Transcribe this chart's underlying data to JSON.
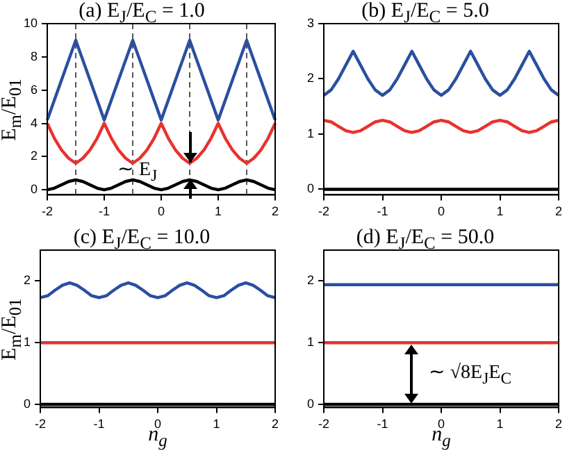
{
  "chart_data": [
    {
      "type": "line",
      "title": "(a) E$_{J}$/E$_{C}$ = 1.0",
      "ylabel": "E$_{m}$/E$_{01}$",
      "legend": false,
      "x": [
        -2,
        -1.875,
        -1.75,
        -1.625,
        -1.5,
        -1.375,
        -1.25,
        -1.125,
        -1,
        -0.875,
        -0.75,
        -0.625,
        -0.5,
        -0.375,
        -0.25,
        -0.125,
        0,
        0.125,
        0.25,
        0.375,
        0.5,
        0.625,
        0.75,
        0.875,
        1,
        1.125,
        1.25,
        1.375,
        1.5,
        1.625,
        1.75,
        1.875,
        2
      ],
      "series": [
        {
          "color": "#000000",
          "values": [
            0,
            0.1,
            0.3,
            0.5,
            0.6,
            0.5,
            0.3,
            0.1,
            0,
            0.1,
            0.3,
            0.5,
            0.6,
            0.5,
            0.3,
            0.1,
            0,
            0.1,
            0.3,
            0.5,
            0.6,
            0.5,
            0.3,
            0.1,
            0,
            0.1,
            0.3,
            0.5,
            0.6,
            0.5,
            0.3,
            0.1,
            0
          ]
        },
        {
          "color": "#e8322d",
          "values": [
            4.0,
            3.1,
            2.4,
            1.9,
            1.6,
            1.9,
            2.4,
            3.1,
            4.0,
            3.1,
            2.4,
            1.9,
            1.6,
            1.9,
            2.4,
            3.1,
            4.0,
            3.1,
            2.4,
            1.9,
            1.6,
            1.9,
            2.4,
            3.1,
            4.0,
            3.1,
            2.4,
            1.9,
            1.6,
            1.9,
            2.4,
            3.1,
            4.0
          ]
        },
        {
          "color": "#2a4fa0",
          "values": [
            4.2,
            5.4,
            6.6,
            7.8,
            9.0,
            7.8,
            6.6,
            5.4,
            4.2,
            5.4,
            6.6,
            7.8,
            9.0,
            7.8,
            6.6,
            5.4,
            4.2,
            5.4,
            6.6,
            7.8,
            9.0,
            7.8,
            6.6,
            5.4,
            4.2,
            5.4,
            6.6,
            7.8,
            9.0,
            7.8,
            6.6,
            5.4,
            4.2
          ]
        }
      ],
      "xlim": [
        -2,
        2
      ],
      "xticks": [
        -2,
        -1,
        0,
        1,
        2
      ],
      "ylim": [
        -0.3,
        10
      ],
      "yticks": [
        0,
        2,
        4,
        6,
        8,
        10
      ],
      "ref_lines": [
        {
          "axis": "x",
          "value": -1.5,
          "color": "#555555",
          "line_style": "dashed"
        },
        {
          "axis": "x",
          "value": -0.5,
          "color": "#555555",
          "line_style": "dashed"
        },
        {
          "axis": "x",
          "value": 0.5,
          "color": "#555555",
          "line_style": "dashed"
        },
        {
          "axis": "x",
          "value": 1.5,
          "color": "#555555",
          "line_style": "dashed"
        }
      ],
      "annotations": [
        {
          "text": "∼ E$_{J}$",
          "x": 0.5,
          "y": 1.1
        }
      ]
    },
    {
      "type": "line",
      "title": "(b) E$_{J}$/E$_{C}$ = 5.0",
      "legend": false,
      "x": [
        -2,
        -1.875,
        -1.75,
        -1.625,
        -1.5,
        -1.375,
        -1.25,
        -1.125,
        -1,
        -0.875,
        -0.75,
        -0.625,
        -0.5,
        -0.375,
        -0.25,
        -0.125,
        0,
        0.125,
        0.25,
        0.375,
        0.5,
        0.625,
        0.75,
        0.875,
        1,
        1.125,
        1.25,
        1.375,
        1.5,
        1.625,
        1.75,
        1.875,
        2
      ],
      "series": [
        {
          "color": "#000000",
          "values": [
            0,
            0,
            0,
            0,
            0,
            0,
            0,
            0,
            0,
            0,
            0,
            0,
            0,
            0,
            0,
            0,
            0,
            0,
            0,
            0,
            0,
            0,
            0,
            0,
            0,
            0,
            0,
            0,
            0,
            0,
            0,
            0,
            0
          ]
        },
        {
          "color": "#e8322d",
          "values": [
            1.25,
            1.22,
            1.14,
            1.06,
            1.03,
            1.06,
            1.14,
            1.22,
            1.25,
            1.22,
            1.14,
            1.06,
            1.03,
            1.06,
            1.14,
            1.22,
            1.25,
            1.22,
            1.14,
            1.06,
            1.03,
            1.06,
            1.14,
            1.22,
            1.25,
            1.22,
            1.14,
            1.06,
            1.03,
            1.06,
            1.14,
            1.22,
            1.25
          ]
        },
        {
          "color": "#2a4fa0",
          "values": [
            1.7,
            1.8,
            2.0,
            2.25,
            2.5,
            2.25,
            2.0,
            1.8,
            1.7,
            1.8,
            2.0,
            2.25,
            2.5,
            2.25,
            2.0,
            1.8,
            1.7,
            1.8,
            2.0,
            2.25,
            2.5,
            2.25,
            2.0,
            1.8,
            1.7,
            1.8,
            2.0,
            2.25,
            2.5,
            2.25,
            2.0,
            1.8,
            1.7
          ]
        }
      ],
      "xlim": [
        -2,
        2
      ],
      "xticks": [
        -2,
        -1,
        0,
        1,
        2
      ],
      "ylim": [
        -0.1,
        3
      ],
      "yticks": [
        0,
        1,
        2,
        3
      ]
    },
    {
      "type": "line",
      "title": "(c) E$_{J}$/E$_{C}$ = 10.0",
      "ylabel": "E$_{m}$/E$_{01}$",
      "xlabel": "n$_{g}$",
      "legend": false,
      "x": [
        -2,
        -1.875,
        -1.75,
        -1.625,
        -1.5,
        -1.375,
        -1.25,
        -1.125,
        -1,
        -0.875,
        -0.75,
        -0.625,
        -0.5,
        -0.375,
        -0.25,
        -0.125,
        0,
        0.125,
        0.25,
        0.375,
        0.5,
        0.625,
        0.75,
        0.875,
        1,
        1.125,
        1.25,
        1.375,
        1.5,
        1.625,
        1.75,
        1.875,
        2
      ],
      "series": [
        {
          "color": "#000000",
          "values": [
            0,
            0,
            0,
            0,
            0,
            0,
            0,
            0,
            0,
            0,
            0,
            0,
            0,
            0,
            0,
            0,
            0,
            0,
            0,
            0,
            0,
            0,
            0,
            0,
            0,
            0,
            0,
            0,
            0,
            0,
            0,
            0,
            0
          ]
        },
        {
          "color": "#e8322d",
          "values": [
            1,
            1,
            1,
            1,
            1,
            1,
            1,
            1,
            1,
            1,
            1,
            1,
            1,
            1,
            1,
            1,
            1,
            1,
            1,
            1,
            1,
            1,
            1,
            1,
            1,
            1,
            1,
            1,
            1,
            1,
            1,
            1,
            1
          ]
        },
        {
          "color": "#2a4fa0",
          "values": [
            1.73,
            1.76,
            1.85,
            1.93,
            1.97,
            1.93,
            1.85,
            1.76,
            1.73,
            1.76,
            1.85,
            1.93,
            1.97,
            1.93,
            1.85,
            1.76,
            1.73,
            1.76,
            1.85,
            1.93,
            1.97,
            1.93,
            1.85,
            1.76,
            1.73,
            1.76,
            1.85,
            1.93,
            1.97,
            1.93,
            1.85,
            1.76,
            1.73
          ]
        }
      ],
      "xlim": [
        -2,
        2
      ],
      "xticks": [
        -2,
        -1,
        0,
        1,
        2
      ],
      "ylim": [
        -0.05,
        2.5
      ],
      "yticks": [
        0,
        1,
        2
      ]
    },
    {
      "type": "line",
      "title": "(d) E$_{J}$/E$_{C}$ = 50.0",
      "xlabel": "n$_{g}$",
      "legend": false,
      "x": [
        -2,
        2
      ],
      "series": [
        {
          "color": "#000000",
          "values": [
            0,
            0
          ]
        },
        {
          "color": "#e8322d",
          "values": [
            1,
            1
          ]
        },
        {
          "color": "#2a4fa0",
          "values": [
            1.94,
            1.94
          ]
        }
      ],
      "xlim": [
        -2,
        2
      ],
      "xticks": [
        -2,
        -1,
        0,
        1,
        2
      ],
      "ylim": [
        -0.05,
        2.5
      ],
      "yticks": [
        0,
        1,
        2
      ],
      "annotations": [
        "∼ √8E$_{J}$E$_{C}$"
      ]
    }
  ]
}
